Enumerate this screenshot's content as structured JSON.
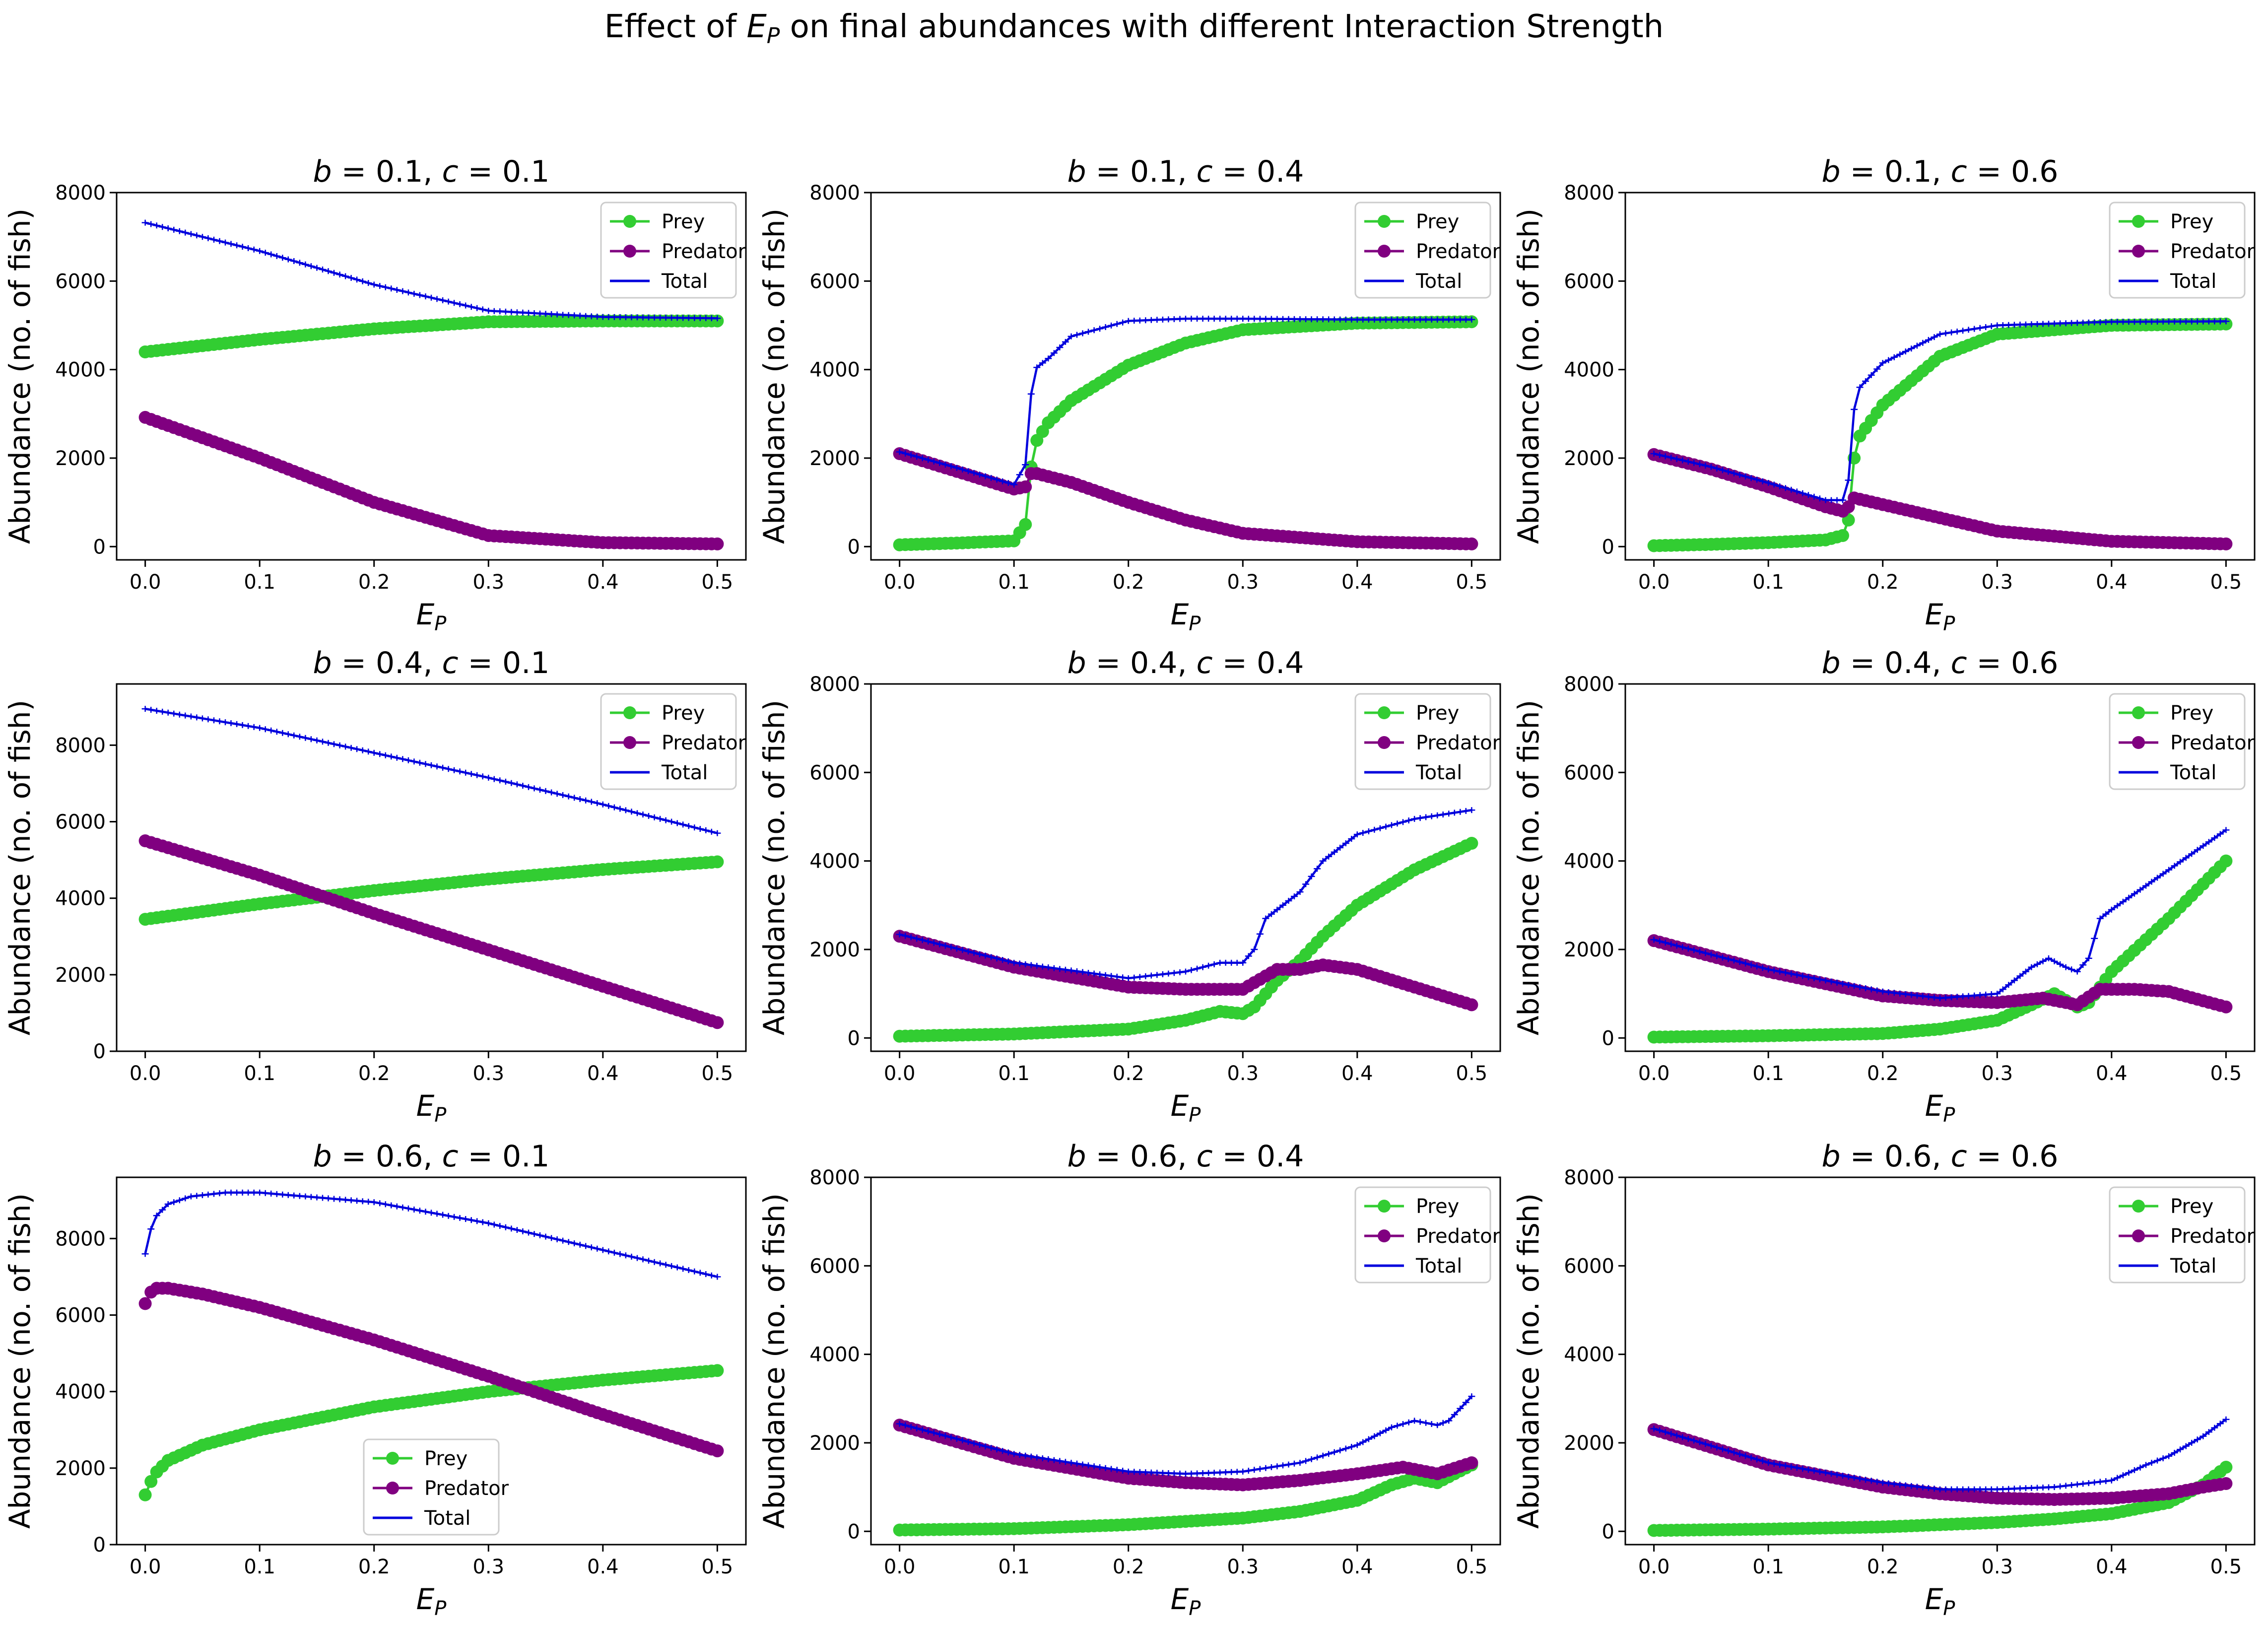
{
  "figure": {
    "title_prefix": "Effect of ",
    "title_var": "E",
    "title_sub": "P",
    "title_suffix": " on final abundances with different Interaction Strength"
  },
  "colors": {
    "prey": "#32cd32",
    "predator": "#800080",
    "total": "#0000dd"
  },
  "axes_common": {
    "ylabel": "Abundance (no. of fish)",
    "xlabel_var": "E",
    "xlabel_sub": "P",
    "xticks": [
      0.0,
      0.1,
      0.2,
      0.3,
      0.4,
      0.5
    ],
    "xtick_labels": [
      "0.0",
      "0.1",
      "0.2",
      "0.3",
      "0.4",
      "0.5"
    ],
    "xlim": [
      -0.025,
      0.525
    ],
    "legend": [
      "Prey",
      "Predator",
      "Total"
    ]
  },
  "chart_data": [
    {
      "type": "line",
      "title": "b = 0.1, c = 0.1",
      "b": "0.1",
      "c": "0.1",
      "ylim": [
        -300,
        8000
      ],
      "yticks": [
        0,
        2000,
        4000,
        6000,
        8000
      ],
      "legend_loc": "upper right",
      "series": [
        {
          "name": "Prey",
          "x": [
            0.0,
            0.1,
            0.2,
            0.3,
            0.4,
            0.5
          ],
          "y": [
            4400,
            4680,
            4920,
            5080,
            5100,
            5100
          ]
        },
        {
          "name": "Predator",
          "x": [
            0.0,
            0.1,
            0.2,
            0.3,
            0.4,
            0.5
          ],
          "y": [
            2920,
            2000,
            1000,
            250,
            90,
            60
          ]
        },
        {
          "name": "Total",
          "x": [
            0.0,
            0.1,
            0.2,
            0.3,
            0.4,
            0.5
          ],
          "y": [
            7320,
            6680,
            5920,
            5330,
            5190,
            5160
          ]
        }
      ]
    },
    {
      "type": "line",
      "title": "b = 0.1, c = 0.4",
      "b": "0.1",
      "c": "0.4",
      "ylim": [
        -300,
        8000
      ],
      "yticks": [
        0,
        2000,
        4000,
        6000,
        8000
      ],
      "legend_loc": "upper right",
      "series": [
        {
          "name": "Prey",
          "x": [
            0.0,
            0.05,
            0.1,
            0.11,
            0.115,
            0.12,
            0.13,
            0.15,
            0.2,
            0.25,
            0.3,
            0.4,
            0.5
          ],
          "y": [
            40,
            80,
            130,
            500,
            1800,
            2400,
            2800,
            3300,
            4100,
            4600,
            4900,
            5050,
            5080
          ]
        },
        {
          "name": "Predator",
          "x": [
            0.0,
            0.05,
            0.1,
            0.11,
            0.115,
            0.12,
            0.15,
            0.2,
            0.25,
            0.3,
            0.4,
            0.5
          ],
          "y": [
            2100,
            1700,
            1300,
            1350,
            1650,
            1650,
            1450,
            1000,
            600,
            300,
            110,
            60
          ]
        },
        {
          "name": "Total",
          "x": [
            0.0,
            0.05,
            0.1,
            0.11,
            0.115,
            0.12,
            0.13,
            0.15,
            0.2,
            0.25,
            0.3,
            0.4,
            0.5
          ],
          "y": [
            2140,
            1780,
            1400,
            1850,
            3450,
            4050,
            4250,
            4750,
            5100,
            5150,
            5150,
            5130,
            5130
          ]
        }
      ]
    },
    {
      "type": "line",
      "title": "b = 0.1, c = 0.6",
      "b": "0.1",
      "c": "0.6",
      "ylim": [
        -300,
        8000
      ],
      "yticks": [
        0,
        2000,
        4000,
        6000,
        8000
      ],
      "legend_loc": "upper right",
      "series": [
        {
          "name": "Prey",
          "x": [
            0.0,
            0.05,
            0.1,
            0.15,
            0.165,
            0.17,
            0.175,
            0.18,
            0.2,
            0.25,
            0.3,
            0.4,
            0.5
          ],
          "y": [
            20,
            50,
            90,
            150,
            250,
            600,
            2000,
            2500,
            3200,
            4300,
            4800,
            5000,
            5030
          ]
        },
        {
          "name": "Predator",
          "x": [
            0.0,
            0.05,
            0.1,
            0.15,
            0.165,
            0.17,
            0.175,
            0.2,
            0.25,
            0.3,
            0.4,
            0.5
          ],
          "y": [
            2080,
            1750,
            1350,
            900,
            800,
            900,
            1100,
            950,
            650,
            350,
            120,
            60
          ]
        },
        {
          "name": "Total",
          "x": [
            0.0,
            0.05,
            0.1,
            0.15,
            0.165,
            0.17,
            0.175,
            0.18,
            0.2,
            0.25,
            0.3,
            0.4,
            0.5
          ],
          "y": [
            2100,
            1800,
            1440,
            1050,
            1050,
            1500,
            3100,
            3600,
            4150,
            4800,
            5000,
            5080,
            5090
          ]
        }
      ]
    },
    {
      "type": "line",
      "title": "b = 0.4, c = 0.1",
      "b": "0.4",
      "c": "0.1",
      "ylim": [
        0,
        9600
      ],
      "yticks": [
        0,
        2000,
        4000,
        6000,
        8000
      ],
      "legend_loc": "upper right",
      "series": [
        {
          "name": "Prey",
          "x": [
            0.0,
            0.1,
            0.2,
            0.3,
            0.4,
            0.5
          ],
          "y": [
            3450,
            3850,
            4200,
            4500,
            4750,
            4950
          ]
        },
        {
          "name": "Predator",
          "x": [
            0.0,
            0.1,
            0.2,
            0.3,
            0.4,
            0.5
          ],
          "y": [
            5500,
            4600,
            3600,
            2650,
            1700,
            750
          ]
        },
        {
          "name": "Total",
          "x": [
            0.0,
            0.1,
            0.2,
            0.3,
            0.4,
            0.5
          ],
          "y": [
            8950,
            8450,
            7800,
            7150,
            6450,
            5700
          ]
        }
      ]
    },
    {
      "type": "line",
      "title": "b = 0.4, c = 0.4",
      "b": "0.4",
      "c": "0.4",
      "ylim": [
        -300,
        8000
      ],
      "yticks": [
        0,
        2000,
        4000,
        6000,
        8000
      ],
      "legend_loc": "upper right",
      "series": [
        {
          "name": "Prey",
          "x": [
            0.0,
            0.1,
            0.2,
            0.25,
            0.28,
            0.3,
            0.31,
            0.33,
            0.35,
            0.37,
            0.4,
            0.45,
            0.5
          ],
          "y": [
            40,
            90,
            200,
            400,
            600,
            550,
            700,
            1300,
            1750,
            2300,
            3000,
            3800,
            4400
          ]
        },
        {
          "name": "Predator",
          "x": [
            0.0,
            0.1,
            0.2,
            0.25,
            0.3,
            0.31,
            0.33,
            0.35,
            0.37,
            0.4,
            0.45,
            0.5
          ],
          "y": [
            2300,
            1600,
            1150,
            1100,
            1100,
            1250,
            1550,
            1550,
            1650,
            1550,
            1150,
            750
          ]
        },
        {
          "name": "Total",
          "x": [
            0.0,
            0.1,
            0.2,
            0.25,
            0.28,
            0.3,
            0.31,
            0.32,
            0.33,
            0.35,
            0.37,
            0.4,
            0.45,
            0.5
          ],
          "y": [
            2340,
            1700,
            1350,
            1500,
            1700,
            1700,
            2000,
            2700,
            2900,
            3300,
            4000,
            4600,
            4950,
            5150
          ]
        }
      ]
    },
    {
      "type": "line",
      "title": "b = 0.4, c = 0.6",
      "b": "0.4",
      "c": "0.6",
      "ylim": [
        -300,
        8000
      ],
      "yticks": [
        0,
        2000,
        4000,
        6000,
        8000
      ],
      "legend_loc": "upper right",
      "series": [
        {
          "name": "Prey",
          "x": [
            0.0,
            0.1,
            0.2,
            0.25,
            0.3,
            0.33,
            0.35,
            0.37,
            0.38,
            0.4,
            0.45,
            0.5
          ],
          "y": [
            20,
            50,
            100,
            200,
            400,
            750,
            1000,
            700,
            800,
            1500,
            2700,
            4000
          ]
        },
        {
          "name": "Predator",
          "x": [
            0.0,
            0.1,
            0.2,
            0.25,
            0.3,
            0.34,
            0.37,
            0.39,
            0.42,
            0.45,
            0.5
          ],
          "y": [
            2200,
            1500,
            950,
            850,
            800,
            900,
            750,
            1100,
            1100,
            1050,
            700
          ]
        },
        {
          "name": "Total",
          "x": [
            0.0,
            0.1,
            0.2,
            0.25,
            0.3,
            0.33,
            0.345,
            0.36,
            0.37,
            0.38,
            0.39,
            0.4,
            0.45,
            0.5
          ],
          "y": [
            2220,
            1550,
            1050,
            900,
            1000,
            1600,
            1800,
            1600,
            1500,
            1800,
            2700,
            2900,
            3800,
            4700
          ]
        }
      ]
    },
    {
      "type": "line",
      "title": "b = 0.6, c = 0.1",
      "b": "0.6",
      "c": "0.1",
      "ylim": [
        0,
        9600
      ],
      "yticks": [
        0,
        2000,
        4000,
        6000,
        8000
      ],
      "legend_loc": "lower center",
      "series": [
        {
          "name": "Prey",
          "x": [
            0.0,
            0.005,
            0.01,
            0.02,
            0.05,
            0.1,
            0.2,
            0.3,
            0.4,
            0.5
          ],
          "y": [
            1300,
            1650,
            1900,
            2200,
            2600,
            3000,
            3600,
            4000,
            4300,
            4550
          ]
        },
        {
          "name": "Predator",
          "x": [
            0.0,
            0.005,
            0.01,
            0.02,
            0.05,
            0.1,
            0.2,
            0.3,
            0.4,
            0.5
          ],
          "y": [
            6300,
            6600,
            6700,
            6700,
            6550,
            6200,
            5350,
            4400,
            3400,
            2450
          ]
        },
        {
          "name": "Total",
          "x": [
            0.0,
            0.005,
            0.01,
            0.02,
            0.04,
            0.07,
            0.1,
            0.2,
            0.3,
            0.4,
            0.5
          ],
          "y": [
            7600,
            8250,
            8600,
            8900,
            9100,
            9200,
            9200,
            8950,
            8400,
            7700,
            7000
          ]
        }
      ]
    },
    {
      "type": "line",
      "title": "b = 0.6, c = 0.4",
      "b": "0.6",
      "c": "0.4",
      "ylim": [
        -300,
        8000
      ],
      "yticks": [
        0,
        2000,
        4000,
        6000,
        8000
      ],
      "legend_loc": "upper right",
      "series": [
        {
          "name": "Prey",
          "x": [
            0.0,
            0.1,
            0.2,
            0.3,
            0.35,
            0.4,
            0.43,
            0.45,
            0.47,
            0.5
          ],
          "y": [
            30,
            60,
            150,
            300,
            450,
            700,
            1050,
            1200,
            1100,
            1500
          ]
        },
        {
          "name": "Predator",
          "x": [
            0.0,
            0.1,
            0.2,
            0.25,
            0.3,
            0.35,
            0.4,
            0.44,
            0.47,
            0.5
          ],
          "y": [
            2400,
            1650,
            1200,
            1100,
            1050,
            1150,
            1300,
            1450,
            1300,
            1550
          ]
        },
        {
          "name": "Total",
          "x": [
            0.0,
            0.1,
            0.2,
            0.25,
            0.3,
            0.35,
            0.4,
            0.43,
            0.45,
            0.47,
            0.48,
            0.5
          ],
          "y": [
            2430,
            1750,
            1350,
            1300,
            1350,
            1550,
            1950,
            2350,
            2500,
            2400,
            2500,
            3050
          ]
        }
      ]
    },
    {
      "type": "line",
      "title": "b = 0.6, c = 0.6",
      "b": "0.6",
      "c": "0.6",
      "ylim": [
        -300,
        8000
      ],
      "yticks": [
        0,
        2000,
        4000,
        6000,
        8000
      ],
      "legend_loc": "upper right",
      "series": [
        {
          "name": "Prey",
          "x": [
            0.0,
            0.1,
            0.2,
            0.3,
            0.35,
            0.4,
            0.45,
            0.48,
            0.5
          ],
          "y": [
            20,
            50,
            100,
            200,
            280,
            400,
            650,
            1050,
            1450
          ]
        },
        {
          "name": "Predator",
          "x": [
            0.0,
            0.1,
            0.2,
            0.25,
            0.3,
            0.35,
            0.4,
            0.45,
            0.48,
            0.5
          ],
          "y": [
            2300,
            1500,
            1000,
            850,
            750,
            720,
            750,
            850,
            1000,
            1080
          ]
        },
        {
          "name": "Total",
          "x": [
            0.0,
            0.1,
            0.2,
            0.25,
            0.3,
            0.35,
            0.4,
            0.43,
            0.45,
            0.48,
            0.5
          ],
          "y": [
            2320,
            1550,
            1100,
            950,
            950,
            1000,
            1150,
            1500,
            1700,
            2150,
            2530
          ]
        }
      ]
    }
  ]
}
